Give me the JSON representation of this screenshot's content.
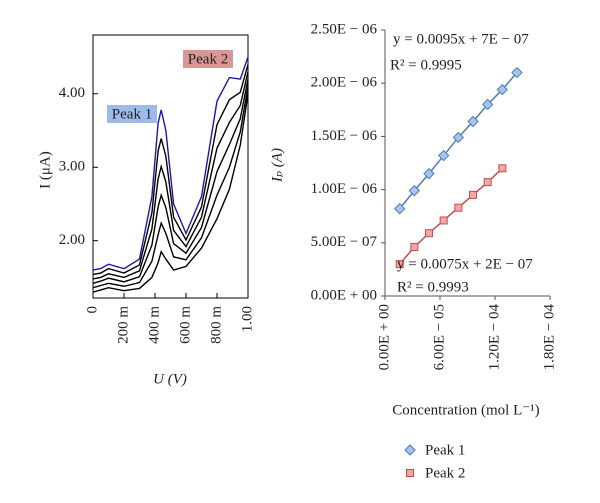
{
  "chart_data": [
    {
      "type": "line",
      "x_label": "U (V)",
      "y_label": "I (μA)",
      "annotations": [
        "Peak 1",
        "Peak 2"
      ],
      "x": [
        0,
        0.05,
        0.1,
        0.2,
        0.3,
        0.38,
        0.42,
        0.44,
        0.47,
        0.52,
        0.6,
        0.7,
        0.8,
        0.88,
        0.95,
        1.0
      ],
      "series": [
        {
          "color": "#000000",
          "values": [
            1.3,
            1.33,
            1.36,
            1.32,
            1.35,
            1.5,
            1.7,
            1.85,
            1.75,
            1.6,
            1.65,
            1.9,
            2.3,
            2.7,
            3.3,
            4.0
          ]
        },
        {
          "color": "#000000",
          "values": [
            1.36,
            1.39,
            1.42,
            1.38,
            1.43,
            1.72,
            2.08,
            2.24,
            2.1,
            1.78,
            1.74,
            2.04,
            2.62,
            3.0,
            3.48,
            4.1
          ]
        },
        {
          "color": "#000000",
          "values": [
            1.42,
            1.45,
            1.49,
            1.44,
            1.51,
            1.94,
            2.46,
            2.62,
            2.45,
            1.96,
            1.83,
            2.18,
            2.94,
            3.31,
            3.66,
            4.2
          ]
        },
        {
          "color": "#000000",
          "values": [
            1.48,
            1.5,
            1.55,
            1.5,
            1.59,
            2.16,
            2.84,
            3.01,
            2.8,
            2.14,
            1.92,
            2.32,
            3.26,
            3.61,
            3.84,
            4.3
          ]
        },
        {
          "color": "#000000",
          "values": [
            1.54,
            1.56,
            1.62,
            1.56,
            1.67,
            2.38,
            3.22,
            3.39,
            3.15,
            2.32,
            2.01,
            2.46,
            3.58,
            3.92,
            4.02,
            4.4
          ]
        },
        {
          "color": "#1a1aa6",
          "values": [
            1.6,
            1.62,
            1.68,
            1.62,
            1.75,
            2.6,
            3.6,
            3.78,
            3.5,
            2.5,
            2.1,
            2.6,
            3.9,
            4.22,
            4.2,
            4.5
          ]
        }
      ],
      "xlim": [
        0,
        1
      ],
      "xticks": [
        0,
        {
          "value": 0.2,
          "label": "200 m"
        },
        {
          "value": 0.4,
          "label": "400 m"
        },
        {
          "value": 0.6,
          "label": "600 m"
        },
        {
          "value": 0.8,
          "label": "800 m"
        },
        {
          "value": 1,
          "label": "1.00"
        }
      ],
      "ylim": [
        1.22,
        4.8
      ],
      "yticks": [
        {
          "value": 2,
          "label": "2.00"
        },
        {
          "value": 3,
          "label": "3.00"
        },
        {
          "value": 4,
          "label": "4.00"
        }
      ]
    },
    {
      "type": "scatter",
      "x_label": "Concentration (mol L⁻¹)",
      "y_label": "Iₚ (A)",
      "annotations": [
        "y = 0.0095x + 7E − 07",
        "R² = 0.9995",
        "y = 0.0075x + 2E − 07",
        "R² = 0.9993"
      ],
      "legend": "bottom",
      "series": [
        {
          "name": "Peak 1",
          "marker": "diamond",
          "color": "#4a7ebb",
          "fill": "#a9c4eb",
          "x": [
            1.6e-05,
            3.2e-05,
            4.8e-05,
            6.4e-05,
            8e-05,
            9.6e-05,
            0.000112,
            0.000128,
            0.000144
          ],
          "values": [
            8.2e-07,
            9.9e-07,
            1.15e-06,
            1.32e-06,
            1.49e-06,
            1.64e-06,
            1.8e-06,
            1.94e-06,
            2.1e-06
          ]
        },
        {
          "name": "Peak 2",
          "marker": "square",
          "color": "#c0504d",
          "fill": "#f2a6a6",
          "x": [
            1.6e-05,
            3.2e-05,
            4.8e-05,
            6.4e-05,
            8e-05,
            9.6e-05,
            0.000112,
            0.000128
          ],
          "values": [
            3e-07,
            4.6e-07,
            5.9e-07,
            7.1e-07,
            8.3e-07,
            9.5e-07,
            1.07e-06,
            1.2e-06
          ]
        }
      ],
      "xlim": [
        0,
        0.00018
      ],
      "xticks": [
        {
          "value": 0,
          "label": "0.00E + 00"
        },
        {
          "value": 6e-05,
          "label": "6.00E − 05"
        },
        {
          "value": 0.00012,
          "label": "1.20E − 04"
        },
        {
          "value": 0.00018,
          "label": "1.80E − 04"
        }
      ],
      "ylim": [
        0,
        2.5e-06
      ],
      "yticks": [
        {
          "value": 0,
          "label": "0.00E + 00"
        },
        {
          "value": 5e-07,
          "label": "5.00E − 07"
        },
        {
          "value": 1e-06,
          "label": "1.00E − 06"
        },
        {
          "value": 1.5e-06,
          "label": "1.50E − 06"
        },
        {
          "value": 2e-06,
          "label": "2.00E − 06"
        },
        {
          "value": 2.5e-06,
          "label": "2.50E − 06"
        }
      ]
    }
  ]
}
